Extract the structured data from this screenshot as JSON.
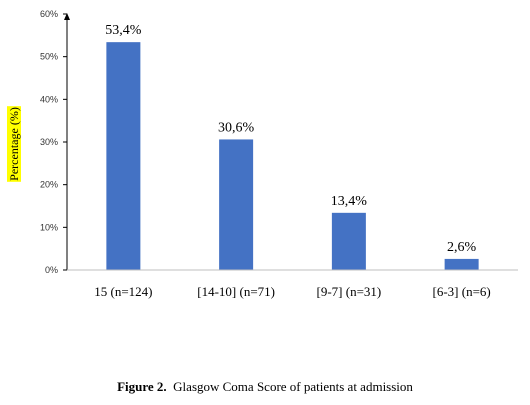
{
  "chart_data": {
    "type": "bar",
    "categories": [
      "15 (n=124)",
      "[14-10] (n=71)",
      "[9-7] (n=31)",
      "[6-3] (n=6)"
    ],
    "values": [
      53.4,
      30.6,
      13.4,
      2.6
    ],
    "data_labels": [
      "53,4%",
      "30,6%",
      "13,4%",
      "2,6%"
    ],
    "ylabel": "Percentage (%)",
    "ylim": [
      0,
      60
    ],
    "yticks": [
      0,
      10,
      20,
      30,
      40,
      50,
      60
    ],
    "ytick_labels": [
      "0%",
      "10%",
      "20%",
      "30%",
      "40%",
      "50%",
      "60%"
    ],
    "grid": false,
    "bar_color": "#4472C4",
    "ylabel_highlight": "#FFFF00"
  },
  "caption": {
    "label": "Figure 2.",
    "text": "Glasgow Coma Score of patients at admission"
  }
}
